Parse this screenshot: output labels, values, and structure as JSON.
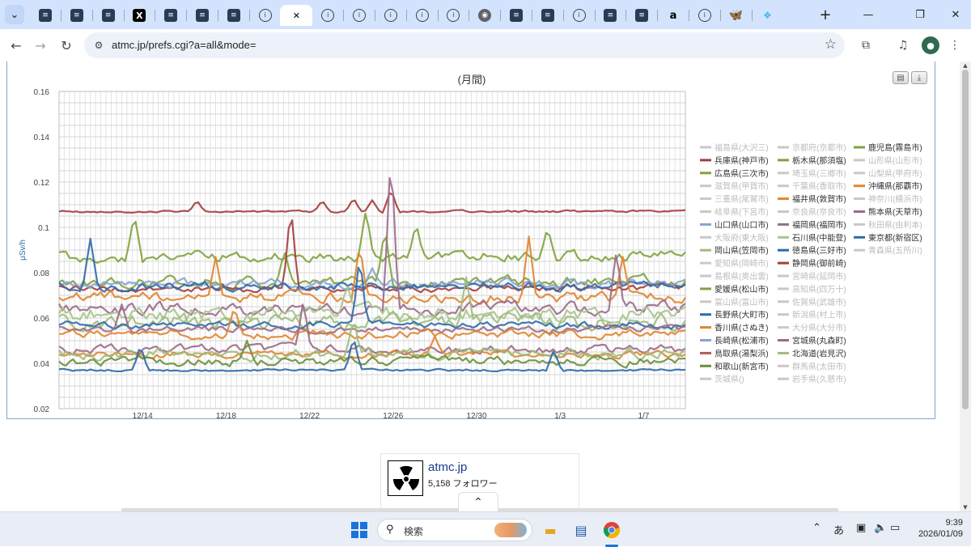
{
  "browser": {
    "tabs": [
      {
        "icon": "site-favicon-icon",
        "glyph": "≡"
      },
      {
        "icon": "site-favicon-icon",
        "glyph": "≡"
      },
      {
        "icon": "site-favicon-icon",
        "glyph": "≡"
      },
      {
        "icon": "x-logo-icon",
        "glyph": "X"
      },
      {
        "icon": "site-favicon-icon",
        "glyph": "≡"
      },
      {
        "icon": "site-favicon-icon",
        "glyph": "≡"
      },
      {
        "icon": "site-favicon-icon",
        "glyph": "≡"
      },
      {
        "icon": "circle-favicon-icon",
        "glyph": "i"
      },
      {
        "icon": "close-tab-icon",
        "glyph": "✕",
        "active": true
      },
      {
        "icon": "circle-favicon-icon",
        "glyph": "i"
      },
      {
        "icon": "circle-favicon-icon",
        "glyph": "i"
      },
      {
        "icon": "circle-favicon-icon",
        "glyph": "i"
      },
      {
        "icon": "circle-favicon-icon",
        "glyph": "i"
      },
      {
        "icon": "circle-favicon-icon",
        "glyph": "i"
      },
      {
        "icon": "globe-favicon-icon",
        "glyph": "◉"
      },
      {
        "icon": "site-favicon-icon",
        "glyph": "≡"
      },
      {
        "icon": "site-favicon-icon",
        "glyph": "≡"
      },
      {
        "icon": "circle-favicon-icon",
        "glyph": "i"
      },
      {
        "icon": "site-favicon-icon",
        "glyph": "≡"
      },
      {
        "icon": "site-favicon-icon",
        "glyph": "≡"
      },
      {
        "icon": "amazon-favicon-icon",
        "glyph": "a"
      },
      {
        "icon": "circle-favicon-icon",
        "glyph": "i"
      },
      {
        "icon": "bluesky-favicon-icon",
        "glyph": "🦋"
      },
      {
        "icon": "cloud-favicon-icon",
        "glyph": "❖"
      }
    ],
    "new_tab_glyph": "+",
    "url": "atmc.jp/prefs.cgi?a=all&mode="
  },
  "chart_data": {
    "type": "line",
    "title": "(月間)",
    "ylabel": "μSv/h",
    "ylim": [
      0.02,
      0.16
    ],
    "yticks": [
      "0.16",
      "0.14",
      "0.12",
      "0.1",
      "0.08",
      "0.06",
      "0.04",
      "0.02"
    ],
    "x_range": [
      "2025-12-10",
      "2026-01-09"
    ],
    "xticks": [
      {
        "label": "12/14",
        "date": "2025-12-14"
      },
      {
        "label": "12/18",
        "date": "2025-12-18"
      },
      {
        "label": "12/22",
        "date": "2025-12-22"
      },
      {
        "label": "12/26",
        "date": "2025-12-26"
      },
      {
        "label": "12/30",
        "date": "2025-12-30"
      },
      {
        "label": "1/3",
        "date": "2026-01-03"
      },
      {
        "label": "1/7",
        "date": "2026-01-07"
      }
    ],
    "grid": true,
    "legend_position": "right",
    "legend": [
      [
        {
          "name": "福島県(大沢三)",
          "color": "#c8c8c8",
          "active": false
        },
        {
          "name": "兵庫県(神戸市)",
          "color": "#a33c3c",
          "active": true
        },
        {
          "name": "広島県(三次市)",
          "color": "#7fa33c",
          "active": true
        },
        {
          "name": "滋賀県(甲賀市)",
          "color": "#c8c8c8",
          "active": false
        },
        {
          "name": "三重県(尾鷲市)",
          "color": "#c8c8c8",
          "active": false
        },
        {
          "name": "岐阜県(下呂市)",
          "color": "#c8c8c8",
          "active": false
        },
        {
          "name": "山口県(山口市)",
          "color": "#86a3d6",
          "active": true
        },
        {
          "name": "大阪府(東大阪)",
          "color": "#c8c8c8",
          "active": false
        },
        {
          "name": "岡山県(笠岡市)",
          "color": "#9dbd7a",
          "active": true
        },
        {
          "name": "愛知県(岡崎市)",
          "color": "#c8c8c8",
          "active": false
        },
        {
          "name": "島根県(奥出雲)",
          "color": "#c8c8c8",
          "active": false
        },
        {
          "name": "愛媛県(松山市)",
          "color": "#7fa33c",
          "active": true
        },
        {
          "name": "富山県(富山市)",
          "color": "#c8c8c8",
          "active": false
        },
        {
          "name": "長野県(大町市)",
          "color": "#2f6aa8",
          "active": true
        },
        {
          "name": "香川県(さぬき)",
          "color": "#e0852f",
          "active": true
        },
        {
          "name": "長崎県(松浦市)",
          "color": "#8d9fd6",
          "active": true
        },
        {
          "name": "鳥取県(湯梨浜)",
          "color": "#b05b5b",
          "active": true
        },
        {
          "name": "和歌山(新宮市)",
          "color": "#6c8f3c",
          "active": true
        },
        {
          "name": "茨城県()",
          "color": "#c8c8c8",
          "active": false
        }
      ],
      [
        {
          "name": "京都府(京都市)",
          "color": "#c8c8c8",
          "active": false
        },
        {
          "name": "栃木県(那須塩)",
          "color": "#7fa33c",
          "active": true
        },
        {
          "name": "埼玉県(三郷市)",
          "color": "#c8c8c8",
          "active": false
        },
        {
          "name": "千葉県(香取市)",
          "color": "#c8c8c8",
          "active": false
        },
        {
          "name": "福井県(敦賀市)",
          "color": "#e0852f",
          "active": true
        },
        {
          "name": "奈良県(奈良市)",
          "color": "#c8c8c8",
          "active": false
        },
        {
          "name": "福岡県(福岡市)",
          "color": "#9b6b8a",
          "active": true
        },
        {
          "name": "石川県(中能登)",
          "color": "#a9c48c",
          "active": true
        },
        {
          "name": "徳島県(三好市)",
          "color": "#2f6aa8",
          "active": true
        },
        {
          "name": "静岡県(御前崎)",
          "color": "#a33c3c",
          "active": true
        },
        {
          "name": "宮崎県(延岡市)",
          "color": "#c8c8c8",
          "active": false
        },
        {
          "name": "高知県(四万十)",
          "color": "#c8c8c8",
          "active": false
        },
        {
          "name": "佐賀県(武雄市)",
          "color": "#c8c8c8",
          "active": false
        },
        {
          "name": "新潟県(村上市)",
          "color": "#c8c8c8",
          "active": false
        },
        {
          "name": "大分県(大分市)",
          "color": "#c8c8c8",
          "active": false
        },
        {
          "name": "宮城県(丸森町)",
          "color": "#9b6b8a",
          "active": true
        },
        {
          "name": "北海道(岩見沢)",
          "color": "#9dbd7a",
          "active": true
        },
        {
          "name": "群馬県(太田市)",
          "color": "#c8c8c8",
          "active": false
        },
        {
          "name": "岩手県(久慈市)",
          "color": "#c8c8c8",
          "active": false
        }
      ],
      [
        {
          "name": "鹿児島(霧島市)",
          "color": "#7fa33c",
          "active": true
        },
        {
          "name": "山形県(山形市)",
          "color": "#c8c8c8",
          "active": false
        },
        {
          "name": "山梨県(甲府市)",
          "color": "#c8c8c8",
          "active": false
        },
        {
          "name": "沖縄県(那覇市)",
          "color": "#e0852f",
          "active": true
        },
        {
          "name": "神奈川(横浜市)",
          "color": "#c8c8c8",
          "active": false
        },
        {
          "name": "熊本県(天草市)",
          "color": "#9b6b8a",
          "active": true
        },
        {
          "name": "秋田県(由利本)",
          "color": "#c8c8c8",
          "active": false
        },
        {
          "name": "東京都(新宿区)",
          "color": "#2f6aa8",
          "active": true
        },
        {
          "name": "青森県(五所川)",
          "color": "#c8c8c8",
          "active": false
        }
      ]
    ],
    "series": [
      {
        "name": "兵庫県(神戸市)",
        "color": "#a33c3c",
        "base": 0.107,
        "amp": 0.001,
        "spikes": [
          [
            0.22,
            0.112
          ],
          [
            0.42,
            0.112
          ],
          [
            0.47,
            0.113
          ],
          [
            0.5,
            0.112
          ],
          [
            0.53,
            0.117
          ]
        ]
      },
      {
        "name": "広島県(三次市)",
        "color": "#7fa33c",
        "base": 0.087,
        "amp": 0.005,
        "spikes": [
          [
            0.12,
            0.106
          ],
          [
            0.49,
            0.108
          ],
          [
            0.57,
            0.102
          ],
          [
            0.78,
            0.1
          ]
        ]
      },
      {
        "name": "鹿児島(霧島市)",
        "color": "#7fa33c",
        "base": 0.076,
        "amp": 0.005,
        "spikes": [
          [
            0.36,
            0.09
          ],
          [
            0.52,
            0.1
          ]
        ]
      },
      {
        "name": "静岡県(御前崎)",
        "color": "#a33c3c",
        "base": 0.073,
        "amp": 0.003,
        "spikes": [
          [
            0.37,
            0.11
          ]
        ]
      },
      {
        "name": "山口県(山口市)",
        "color": "#86a3d6",
        "base": 0.075,
        "amp": 0.004,
        "spikes": [
          [
            0.5,
            0.082
          ]
        ]
      },
      {
        "name": "長野県(大町市)",
        "color": "#2f6aa8",
        "base": 0.074,
        "amp": 0.004,
        "spikes": [
          [
            0.05,
            0.095
          ]
        ]
      },
      {
        "name": "福井県(敦賀市)",
        "color": "#e0852f",
        "base": 0.069,
        "amp": 0.005,
        "spikes": [
          [
            0.25,
            0.087
          ],
          [
            0.48,
            0.093
          ],
          [
            0.75,
            0.096
          ],
          [
            0.9,
            0.087
          ]
        ]
      },
      {
        "name": "熊本県(天草市)",
        "color": "#9b6b8a",
        "base": 0.064,
        "amp": 0.006,
        "spikes": [
          [
            0.53,
            0.135
          ],
          [
            0.89,
            0.09
          ]
        ]
      },
      {
        "name": "石川県(中能登)",
        "color": "#a9c48c",
        "base": 0.062,
        "amp": 0.007,
        "spikes": [
          [
            0.46,
            0.075
          ]
        ]
      },
      {
        "name": "岡山県(笠岡市)",
        "color": "#9dbd7a",
        "base": 0.058,
        "amp": 0.007,
        "spikes": [
          [
            0.65,
            0.078
          ]
        ]
      },
      {
        "name": "徳島県(三好市)",
        "color": "#2f6aa8",
        "base": 0.057,
        "amp": 0.003,
        "spikes": [
          [
            0.48,
            0.088
          ]
        ]
      },
      {
        "name": "福岡県(福岡市)",
        "color": "#9b6b8a",
        "base": 0.055,
        "amp": 0.003,
        "spikes": [
          [
            0.1,
            0.066
          ]
        ]
      },
      {
        "name": "沖縄県(那覇市)",
        "color": "#e0852f",
        "base": 0.053,
        "amp": 0.004,
        "spikes": [
          [
            0.28,
            0.065
          ]
        ]
      },
      {
        "name": "宮城県(丸森町)",
        "color": "#9b6b8a",
        "base": 0.046,
        "amp": 0.004,
        "spikes": [
          [
            0.39,
            0.068
          ]
        ]
      },
      {
        "name": "香川県(さぬき)",
        "color": "#e0852f",
        "base": 0.044,
        "amp": 0.003,
        "spikes": [
          [
            0.6,
            0.052
          ]
        ]
      },
      {
        "name": "北海道(岩見沢)",
        "color": "#9dbd7a",
        "base": 0.044,
        "amp": 0.005,
        "spikes": [
          [
            0.47,
            0.06
          ]
        ]
      },
      {
        "name": "和歌山(新宮市)",
        "color": "#6c8f3c",
        "base": 0.041,
        "amp": 0.004,
        "spikes": [
          [
            0.3,
            0.05
          ]
        ]
      },
      {
        "name": "東京都(新宿区)",
        "color": "#2f6aa8",
        "base": 0.037,
        "amp": 0.001,
        "spikes": [
          [
            0.13,
            0.048
          ],
          [
            0.47,
            0.052
          ],
          [
            0.79,
            0.046
          ]
        ]
      }
    ]
  },
  "widget": {
    "name": "atmc.jp",
    "followers": "5,158 フォロワー"
  },
  "taskbar": {
    "search_label": "検索",
    "ime": "あ",
    "time": "9:39",
    "date": "2026/01/09"
  }
}
